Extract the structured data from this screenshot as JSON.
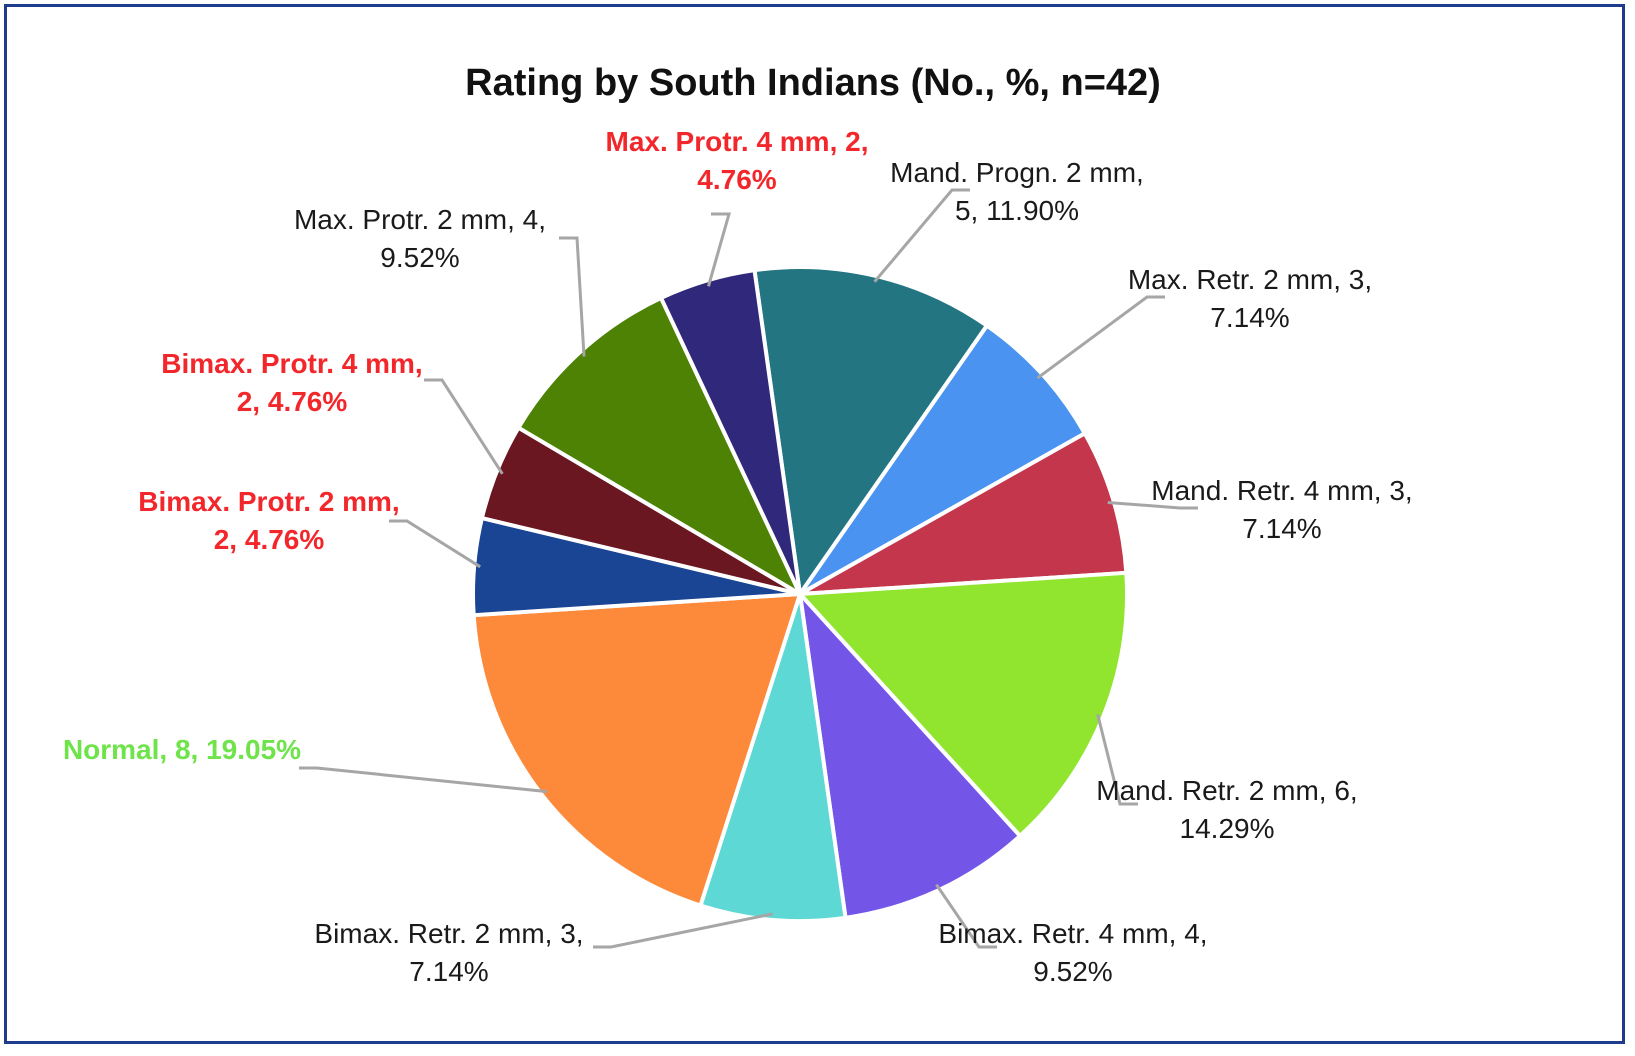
{
  "chart_data": {
    "type": "pie",
    "title": "Rating by South Indians (No., %, n=42)",
    "slices": [
      {
        "label": "Mand. Progn. 2 mm",
        "value": 5,
        "percent": "11.90%",
        "color": "#237582",
        "label_color": "#1a1a1a",
        "bold": false,
        "text": [
          "Mand. Progn. 2 mm,",
          "5, 11.90%"
        ]
      },
      {
        "label": "Max. Retr. 2 mm",
        "value": 3,
        "percent": "7.14%",
        "color": "#4a93f0",
        "label_color": "#1a1a1a",
        "bold": false,
        "text": [
          "Max. Retr. 2 mm, 3,",
          "7.14%"
        ]
      },
      {
        "label": "Mand. Retr. 4 mm",
        "value": 3,
        "percent": "7.14%",
        "color": "#c3364b",
        "label_color": "#1a1a1a",
        "bold": false,
        "text": [
          "Mand. Retr. 4 mm, 3,",
          "7.14%"
        ]
      },
      {
        "label": "Mand. Retr. 2 mm",
        "value": 6,
        "percent": "14.29%",
        "color": "#91e52e",
        "label_color": "#1a1a1a",
        "bold": false,
        "text": [
          "Mand. Retr. 2 mm, 6,",
          "14.29%"
        ]
      },
      {
        "label": "Bimax. Retr. 4 mm",
        "value": 4,
        "percent": "9.52%",
        "color": "#7356e8",
        "label_color": "#1a1a1a",
        "bold": false,
        "text": [
          "Bimax. Retr. 4 mm, 4,",
          "9.52%"
        ]
      },
      {
        "label": "Bimax. Retr. 2 mm",
        "value": 3,
        "percent": "7.14%",
        "color": "#5dd8d4",
        "label_color": "#1a1a1a",
        "bold": false,
        "text": [
          "Bimax. Retr. 2 mm, 3,",
          "7.14%"
        ]
      },
      {
        "label": "Normal",
        "value": 8,
        "percent": "19.05%",
        "color": "#fd8a3a",
        "label_color": "#6ee34a",
        "bold": true,
        "text": [
          "Normal, 8, 19.05%"
        ]
      },
      {
        "label": "Bimax. Protr. 2 mm",
        "value": 2,
        "percent": "4.76%",
        "color": "#1a4494",
        "label_color": "#f2272c",
        "bold": true,
        "text": [
          "Bimax. Protr. 2 mm,",
          "2, 4.76%"
        ]
      },
      {
        "label": "Bimax. Protr. 4 mm",
        "value": 2,
        "percent": "4.76%",
        "color": "#6b1722",
        "label_color": "#f2272c",
        "bold": true,
        "text": [
          "Bimax. Protr. 4 mm,",
          "2, 4.76%"
        ]
      },
      {
        "label": "Max. Protr. 2 mm",
        "value": 4,
        "percent": "9.52%",
        "color": "#4d8204",
        "label_color": "#1a1a1a",
        "bold": false,
        "text": [
          "Max. Protr. 2 mm, 4,",
          "9.52%"
        ]
      },
      {
        "label": "Max. Protr. 4 mm",
        "value": 2,
        "percent": "4.76%",
        "color": "#30287a",
        "label_color": "#f2272c",
        "bold": true,
        "text": [
          "Max. Protr. 4 mm, 2,",
          "4.76%"
        ]
      }
    ]
  }
}
